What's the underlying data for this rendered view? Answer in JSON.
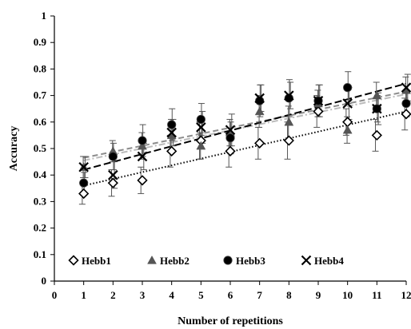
{
  "chart_data": {
    "type": "scatter",
    "xlabel": "Number of repetitions",
    "ylabel": "Accuracy",
    "xlim": [
      0,
      12
    ],
    "ylim": [
      0,
      1
    ],
    "x_ticks": [
      "0",
      "1",
      "2",
      "3",
      "4",
      "5",
      "6",
      "7",
      "8",
      "9",
      "10",
      "11",
      "12"
    ],
    "y_ticks": [
      "0",
      "0.1",
      "0.2",
      "0.3",
      "0.4",
      "0.5",
      "0.6",
      "0.7",
      "0.8",
      "0.9",
      "1"
    ],
    "grid": false,
    "legend_position": "bottom-inside",
    "x": [
      1,
      2,
      3,
      4,
      5,
      6,
      7,
      8,
      9,
      10,
      11,
      12
    ],
    "series": [
      {
        "name": "Hebb1",
        "marker": "diamond-open",
        "color": "#000000",
        "values": [
          0.33,
          0.37,
          0.38,
          0.49,
          0.53,
          0.49,
          0.52,
          0.53,
          0.64,
          0.6,
          0.55,
          0.63
        ],
        "errors": [
          0.04,
          0.05,
          0.05,
          0.06,
          0.07,
          0.06,
          0.06,
          0.07,
          0.06,
          0.05,
          0.06,
          0.06
        ],
        "trend": {
          "style": "dotted",
          "color": "#000000",
          "start": 0.36,
          "end": 0.64
        }
      },
      {
        "name": "Hebb2",
        "marker": "triangle",
        "color": "#555555",
        "values": [
          0.43,
          0.49,
          0.51,
          0.55,
          0.51,
          0.56,
          0.64,
          0.6,
          0.67,
          0.57,
          0.7,
          0.72
        ],
        "errors": [
          0.04,
          0.04,
          0.05,
          0.06,
          0.05,
          0.05,
          0.06,
          0.06,
          0.05,
          0.05,
          0.05,
          0.05
        ],
        "trend": {
          "style": "dashed",
          "color": "#8c8c8c",
          "start": 0.465,
          "end": 0.715
        }
      },
      {
        "name": "Hebb3",
        "marker": "circle",
        "color": "#000000",
        "values": [
          0.37,
          0.47,
          0.53,
          0.59,
          0.61,
          0.54,
          0.68,
          0.69,
          0.68,
          0.73,
          0.65,
          0.67
        ],
        "errors": [
          0.04,
          0.05,
          0.06,
          0.06,
          0.06,
          0.06,
          0.06,
          0.07,
          0.06,
          0.06,
          0.05,
          0.05
        ],
        "trend": {
          "style": "dash-dot",
          "color": "#bbbbbb",
          "start": 0.455,
          "end": 0.705
        }
      },
      {
        "name": "Hebb4",
        "marker": "cross",
        "color": "#000000",
        "values": [
          0.43,
          0.4,
          0.47,
          0.56,
          0.58,
          0.57,
          0.69,
          0.7,
          0.68,
          0.67,
          0.65,
          0.73
        ],
        "errors": [
          0.04,
          0.05,
          0.05,
          0.05,
          0.06,
          0.06,
          0.05,
          0.05,
          0.06,
          0.06,
          0.06,
          0.05
        ],
        "trend": {
          "style": "dashed-long",
          "color": "#000000",
          "start": 0.42,
          "end": 0.745
        }
      }
    ]
  }
}
